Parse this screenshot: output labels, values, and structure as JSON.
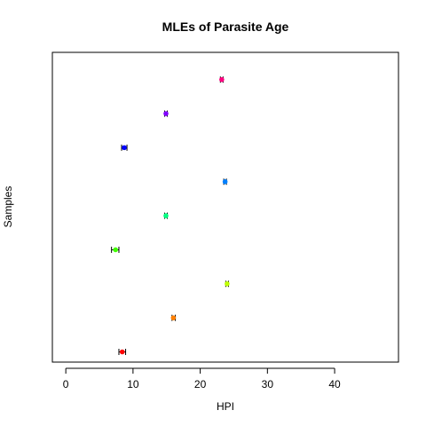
{
  "chart_data": {
    "type": "scatter",
    "title": "MLEs of Parasite Age",
    "xlabel": "HPI",
    "ylabel": "Samples",
    "xlim": [
      -2,
      49.5
    ],
    "ylim": [
      0.7,
      9.8
    ],
    "x_ticks": [
      0,
      10,
      20,
      30,
      40
    ],
    "grid": false,
    "legend": "none",
    "points": [
      {
        "sample": 1,
        "estimate": 8.4,
        "lower": 7.9,
        "upper": 8.9,
        "color": "#FF0000"
      },
      {
        "sample": 2,
        "estimate": 16.0,
        "lower": 15.8,
        "upper": 16.3,
        "color": "#FF8000"
      },
      {
        "sample": 3,
        "estimate": 24.0,
        "lower": 23.8,
        "upper": 24.2,
        "color": "#BFFF00"
      },
      {
        "sample": 4,
        "estimate": 7.4,
        "lower": 6.8,
        "upper": 7.9,
        "color": "#40FF00"
      },
      {
        "sample": 5,
        "estimate": 14.9,
        "lower": 14.7,
        "upper": 15.1,
        "color": "#00FF80"
      },
      {
        "sample": 6,
        "estimate": 23.7,
        "lower": 23.5,
        "upper": 23.9,
        "color": "#0080FF"
      },
      {
        "sample": 7,
        "estimate": 8.7,
        "lower": 8.3,
        "upper": 9.1,
        "color": "#0000FF"
      },
      {
        "sample": 8,
        "estimate": 14.9,
        "lower": 14.7,
        "upper": 15.1,
        "color": "#8000FF"
      },
      {
        "sample": 9,
        "estimate": 23.2,
        "lower": 23.0,
        "upper": 23.4,
        "color": "#FF0080"
      }
    ]
  }
}
